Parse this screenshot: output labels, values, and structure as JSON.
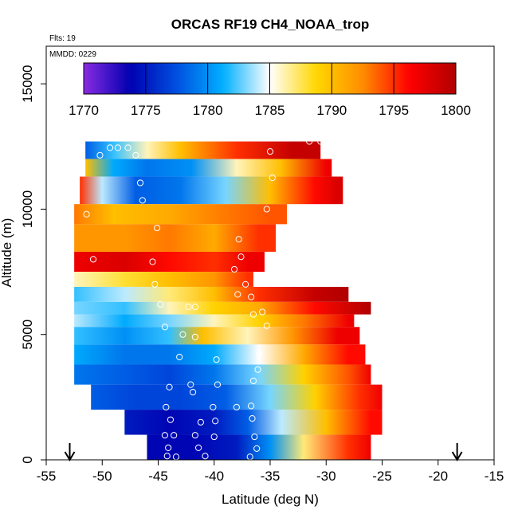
{
  "chart_data": {
    "type": "heatmap",
    "title": "ORCAS RF19 CH4_NOAA_trop",
    "annotations": {
      "flights": "Flts: 19",
      "date": "MMDD: 0229"
    },
    "xlabel": "Latitude (deg N)",
    "ylabel": "Altitude (m)",
    "xlim": [
      -55,
      -15
    ],
    "ylim": [
      0,
      16500
    ],
    "x_ticks": [
      -55,
      -50,
      -45,
      -40,
      -35,
      -30,
      -25,
      -20,
      -15
    ],
    "x_tick_labels": [
      "-55",
      "-50",
      "-45",
      "-40",
      "-35",
      "-30",
      "-25",
      "-20",
      "-15"
    ],
    "y_ticks": [
      0,
      5000,
      10000,
      15000
    ],
    "y_tick_labels": [
      "0",
      "5000",
      "10000",
      "15000"
    ],
    "colorbar": {
      "min": 1770,
      "max": 1800,
      "ticks": [
        1770,
        1775,
        1780,
        1785,
        1790,
        1795,
        1800
      ],
      "tick_labels": [
        "1770",
        "1775",
        "1780",
        "1785",
        "1790",
        "1795",
        "1800"
      ],
      "colors": [
        "#8a2be2",
        "#0000b0",
        "#0050e0",
        "#00b0ff",
        "#ffffff",
        "#ffd700",
        "#ff8c00",
        "#ff0000",
        "#b00000"
      ]
    },
    "markers": [
      {
        "lat": -52.9,
        "label": "down-arrow"
      },
      {
        "lat": -18.3,
        "label": "down-arrow"
      }
    ],
    "field": [
      {
        "alt_top": 12700,
        "alt_bot": 12000,
        "lat_min": -51.5,
        "lat_max": -30.5,
        "profile": [
          [
            -51.5,
            1778
          ],
          [
            -49,
            1782
          ],
          [
            -46,
            1786
          ],
          [
            -43,
            1790
          ],
          [
            -38,
            1795
          ],
          [
            -33,
            1799
          ]
        ]
      },
      {
        "alt_top": 12000,
        "alt_bot": 11300,
        "lat_min": -51.5,
        "lat_max": -29.5,
        "profile": [
          [
            -51.5,
            1790
          ],
          [
            -49,
            1781
          ],
          [
            -46,
            1779
          ],
          [
            -42,
            1780
          ],
          [
            -38,
            1786
          ],
          [
            -34,
            1790
          ],
          [
            -30,
            1797
          ]
        ]
      },
      {
        "alt_top": 11300,
        "alt_bot": 10200,
        "lat_min": -52,
        "lat_max": -28.5,
        "profile": [
          [
            -52,
            1795
          ],
          [
            -50,
            1784
          ],
          [
            -47,
            1778
          ],
          [
            -43,
            1779
          ],
          [
            -39,
            1783
          ],
          [
            -35,
            1790
          ],
          [
            -31,
            1796
          ],
          [
            -29,
            1798
          ]
        ]
      },
      {
        "alt_top": 10200,
        "alt_bot": 9400,
        "lat_min": -52.5,
        "lat_max": -33.5,
        "profile": [
          [
            -52.5,
            1793
          ],
          [
            -49,
            1790
          ],
          [
            -44,
            1791
          ],
          [
            -39,
            1793
          ],
          [
            -35,
            1794
          ]
        ]
      },
      {
        "alt_top": 9400,
        "alt_bot": 8300,
        "lat_min": -52.5,
        "lat_max": -34.5,
        "profile": [
          [
            -52.5,
            1792
          ],
          [
            -48,
            1792
          ],
          [
            -44,
            1793
          ],
          [
            -40,
            1791
          ],
          [
            -36,
            1795
          ]
        ]
      },
      {
        "alt_top": 8300,
        "alt_bot": 7500,
        "lat_min": -52.5,
        "lat_max": -35.5,
        "profile": [
          [
            -52.5,
            1797
          ],
          [
            -48,
            1798
          ],
          [
            -44,
            1796
          ],
          [
            -40,
            1795
          ],
          [
            -37,
            1797
          ]
        ]
      },
      {
        "alt_top": 7500,
        "alt_bot": 6900,
        "lat_min": -52.5,
        "lat_max": -36.5,
        "profile": [
          [
            -52.5,
            1786
          ],
          [
            -48,
            1788
          ],
          [
            -44,
            1790
          ],
          [
            -40,
            1792
          ],
          [
            -37,
            1795
          ]
        ]
      },
      {
        "alt_top": 6900,
        "alt_bot": 6300,
        "lat_min": -52.5,
        "lat_max": -28,
        "profile": [
          [
            -52.5,
            1782
          ],
          [
            -48,
            1784
          ],
          [
            -44,
            1787
          ],
          [
            -40,
            1790
          ],
          [
            -36,
            1795
          ],
          [
            -31,
            1799
          ],
          [
            -28,
            1800
          ]
        ]
      },
      {
        "alt_top": 6300,
        "alt_bot": 5800,
        "lat_min": -52.5,
        "lat_max": -26,
        "profile": [
          [
            -52.5,
            1783
          ],
          [
            -48,
            1782
          ],
          [
            -44,
            1786
          ],
          [
            -40,
            1789
          ],
          [
            -36,
            1791
          ],
          [
            -31,
            1796
          ],
          [
            -26,
            1800
          ]
        ]
      },
      {
        "alt_top": 5800,
        "alt_bot": 5300,
        "lat_min": -52.5,
        "lat_max": -27.5,
        "profile": [
          [
            -52.5,
            1784
          ],
          [
            -48,
            1781
          ],
          [
            -44,
            1783
          ],
          [
            -40,
            1786
          ],
          [
            -36,
            1789
          ],
          [
            -32,
            1793
          ],
          [
            -28,
            1797
          ]
        ]
      },
      {
        "alt_top": 5300,
        "alt_bot": 4600,
        "lat_min": -52.5,
        "lat_max": -27,
        "profile": [
          [
            -52.5,
            1782
          ],
          [
            -48,
            1780
          ],
          [
            -44,
            1782
          ],
          [
            -41,
            1790
          ],
          [
            -37,
            1786
          ],
          [
            -33,
            1792
          ],
          [
            -29,
            1797
          ]
        ]
      },
      {
        "alt_top": 4600,
        "alt_bot": 3800,
        "lat_min": -52.5,
        "lat_max": -26.5,
        "profile": [
          [
            -52.5,
            1781
          ],
          [
            -48,
            1779
          ],
          [
            -44,
            1779
          ],
          [
            -40,
            1781
          ],
          [
            -36,
            1785
          ],
          [
            -32,
            1791
          ],
          [
            -28,
            1796
          ]
        ]
      },
      {
        "alt_top": 3800,
        "alt_bot": 3000,
        "lat_min": -52.5,
        "lat_max": -26,
        "profile": [
          [
            -52.5,
            1779
          ],
          [
            -48,
            1778
          ],
          [
            -44,
            1777
          ],
          [
            -40,
            1779
          ],
          [
            -36,
            1783
          ],
          [
            -32,
            1789
          ],
          [
            -28,
            1794
          ],
          [
            -26,
            1797
          ]
        ]
      },
      {
        "alt_top": 3000,
        "alt_bot": 2000,
        "lat_min": -51,
        "lat_max": -25,
        "profile": [
          [
            -51,
            1778
          ],
          [
            -47,
            1777
          ],
          [
            -43,
            1777
          ],
          [
            -39,
            1778
          ],
          [
            -35,
            1783
          ],
          [
            -31,
            1789
          ],
          [
            -27,
            1795
          ],
          [
            -25,
            1797
          ]
        ]
      },
      {
        "alt_top": 2000,
        "alt_bot": 1000,
        "lat_min": -48,
        "lat_max": -25,
        "profile": [
          [
            -48,
            1775
          ],
          [
            -44,
            1774
          ],
          [
            -40,
            1775
          ],
          [
            -37,
            1778
          ],
          [
            -34,
            1784
          ],
          [
            -30,
            1790
          ],
          [
            -26,
            1796
          ]
        ]
      },
      {
        "alt_top": 1000,
        "alt_bot": 0,
        "lat_min": -46,
        "lat_max": -26,
        "profile": [
          [
            -46,
            1774
          ],
          [
            -42,
            1774
          ],
          [
            -38,
            1775
          ],
          [
            -35,
            1780
          ],
          [
            -32,
            1787
          ],
          [
            -28,
            1795
          ],
          [
            -26,
            1797
          ]
        ]
      }
    ],
    "obs_points": [
      [
        -49.3,
        12450
      ],
      [
        -48.6,
        12450
      ],
      [
        -47.7,
        12450
      ],
      [
        -47.0,
        12150
      ],
      [
        -50.2,
        12150
      ],
      [
        -46.6,
        11050
      ],
      [
        -46.4,
        10350
      ],
      [
        -45.1,
        9250
      ],
      [
        -34.8,
        11250
      ],
      [
        -35.3,
        10000
      ],
      [
        -35.0,
        12300
      ],
      [
        -31.5,
        12700
      ],
      [
        -30.5,
        12700
      ],
      [
        -37.8,
        8800
      ],
      [
        -37.6,
        8100
      ],
      [
        -38.2,
        7600
      ],
      [
        -45.5,
        7900
      ],
      [
        -45.3,
        7000
      ],
      [
        -50.8,
        8000
      ],
      [
        -51.4,
        9800
      ],
      [
        -37.9,
        6600
      ],
      [
        -37.2,
        7000
      ],
      [
        -44.8,
        6200
      ],
      [
        -42.3,
        6100
      ],
      [
        -41.7,
        6100
      ],
      [
        -36.7,
        6500
      ],
      [
        -36.5,
        5800
      ],
      [
        -35.7,
        5900
      ],
      [
        -35.3,
        5350
      ],
      [
        -44.4,
        5300
      ],
      [
        -42.8,
        5000
      ],
      [
        -41.7,
        4900
      ],
      [
        -36.0,
        4200
      ],
      [
        -36.1,
        3600
      ],
      [
        -39.8,
        4000
      ],
      [
        -43.1,
        4100
      ],
      [
        -42.1,
        3000
      ],
      [
        -44.0,
        2900
      ],
      [
        -39.7,
        3000
      ],
      [
        -36.5,
        3150
      ],
      [
        -41.9,
        2700
      ],
      [
        -44.3,
        2100
      ],
      [
        -40.1,
        2100
      ],
      [
        -38.0,
        2100
      ],
      [
        -36.7,
        2150
      ],
      [
        -36.6,
        1650
      ],
      [
        -39.9,
        1550
      ],
      [
        -41.2,
        1500
      ],
      [
        -43.9,
        1600
      ],
      [
        -44.4,
        980
      ],
      [
        -43.6,
        980
      ],
      [
        -41.7,
        980
      ],
      [
        -40.0,
        920
      ],
      [
        -36.4,
        920
      ],
      [
        -44.1,
        480
      ],
      [
        -41.4,
        480
      ],
      [
        -36.2,
        450
      ],
      [
        -44.2,
        150
      ],
      [
        -43.4,
        120
      ],
      [
        -40.8,
        150
      ],
      [
        -36.8,
        120
      ]
    ]
  }
}
